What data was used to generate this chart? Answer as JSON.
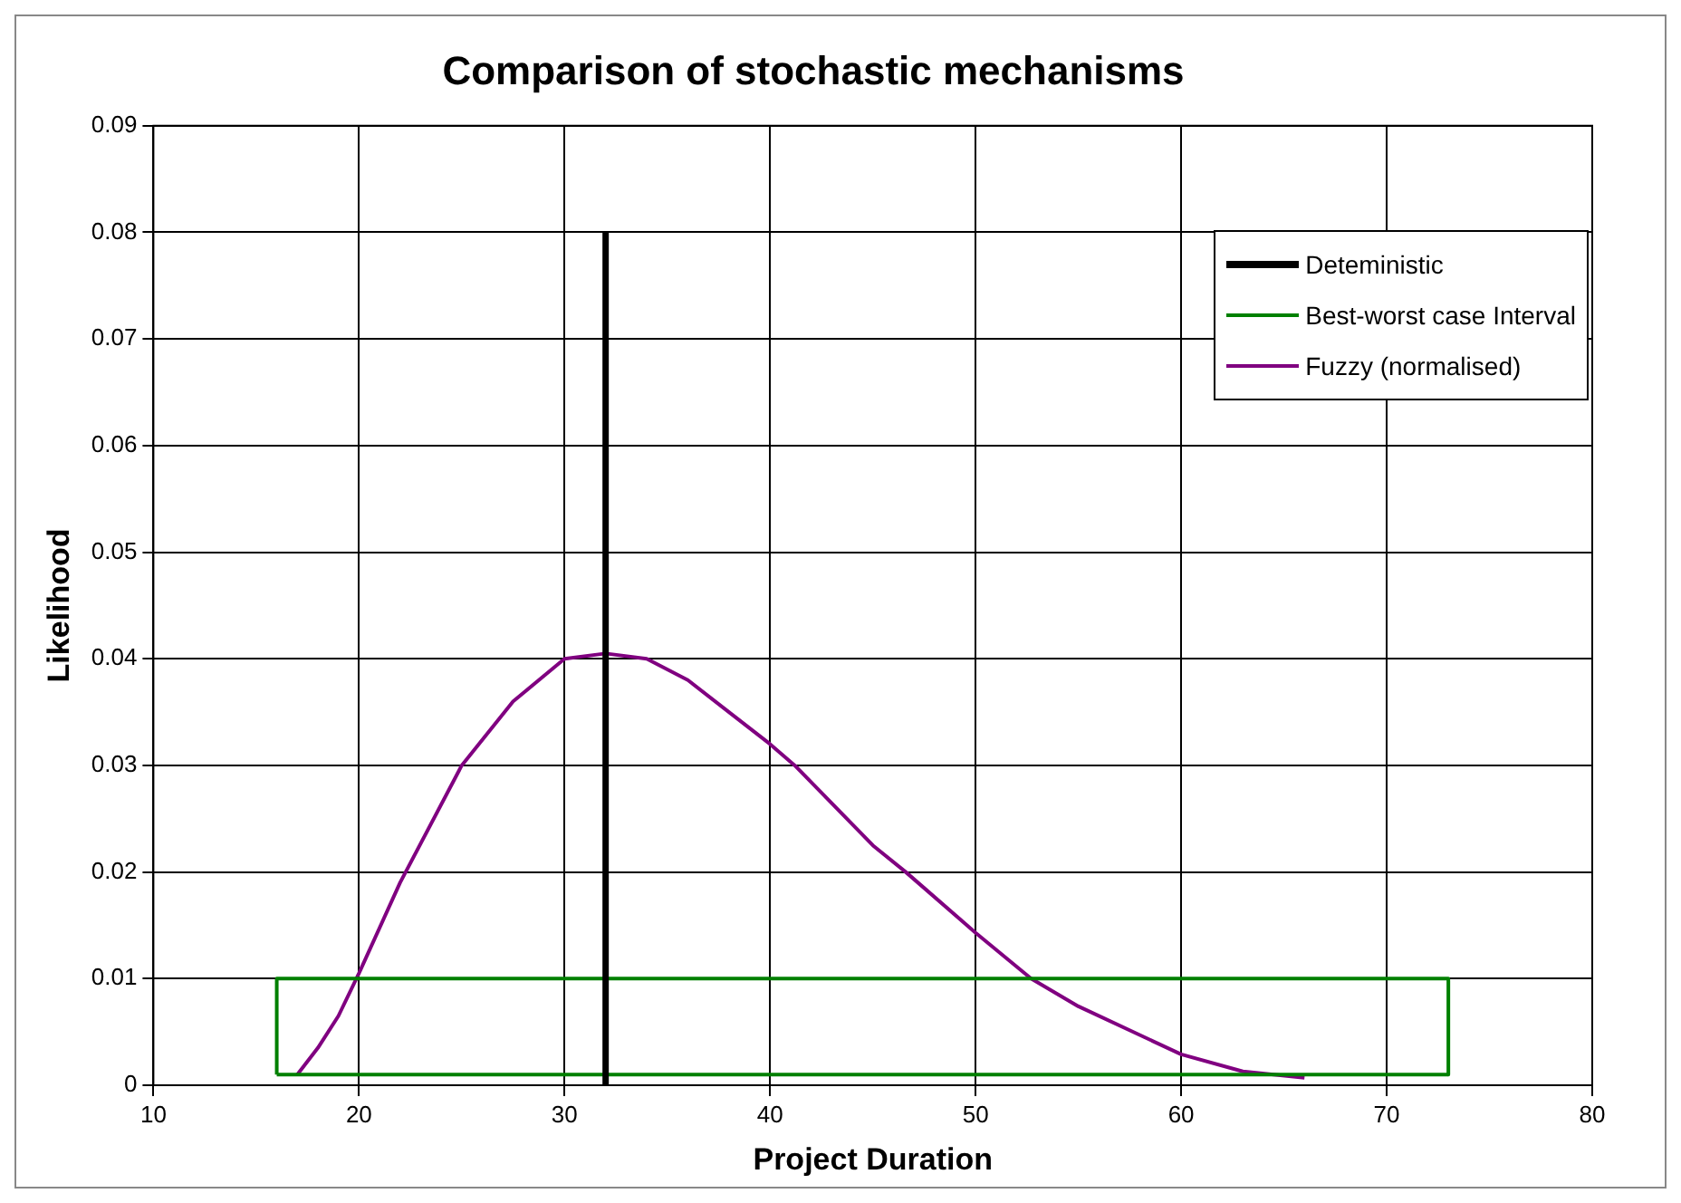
{
  "chart_data": {
    "type": "line",
    "title": "Comparison of stochastic mechanisms",
    "xlabel": "Project Duration",
    "ylabel": "Likelihood",
    "xlim": [
      10,
      80
    ],
    "xticks": [
      10,
      20,
      30,
      40,
      50,
      60,
      70,
      80
    ],
    "ylim": [
      0,
      0.09
    ],
    "yticks": [
      0,
      0.01,
      0.02,
      0.03,
      0.04,
      0.05,
      0.06,
      0.07,
      0.08,
      0.09
    ],
    "grid": true,
    "legend": "top right",
    "marker": "none",
    "line_style": "solid",
    "series": [
      {
        "name": "Deteministic",
        "color": "#000000",
        "x": [
          32,
          32
        ],
        "values": [
          0,
          0.08
        ]
      },
      {
        "name": "Best-worst case Interval",
        "color": "#008000",
        "x": [
          16,
          16,
          73,
          73
        ],
        "values": [
          0.001,
          0.01,
          0.01,
          0.001
        ]
      },
      {
        "color": "#008000",
        "x": [
          16,
          73
        ],
        "values": [
          0.001,
          0.001
        ]
      },
      {
        "name": "Fuzzy (normalised)",
        "color": "#800080",
        "x": [
          17,
          18,
          19,
          20,
          22,
          25,
          27.5,
          30,
          32,
          34,
          36,
          38,
          40,
          41.2,
          45,
          46.6,
          50,
          52.7,
          55,
          60,
          63,
          66
        ],
        "values": [
          0.001,
          0.0035,
          0.0065,
          0.0105,
          0.019,
          0.03,
          0.036,
          0.04,
          0.0405,
          0.04,
          0.038,
          0.035,
          0.032,
          0.03,
          0.0225,
          0.02,
          0.0143,
          0.01,
          0.0074,
          0.0029,
          0.0013,
          0.0007
        ]
      }
    ]
  }
}
